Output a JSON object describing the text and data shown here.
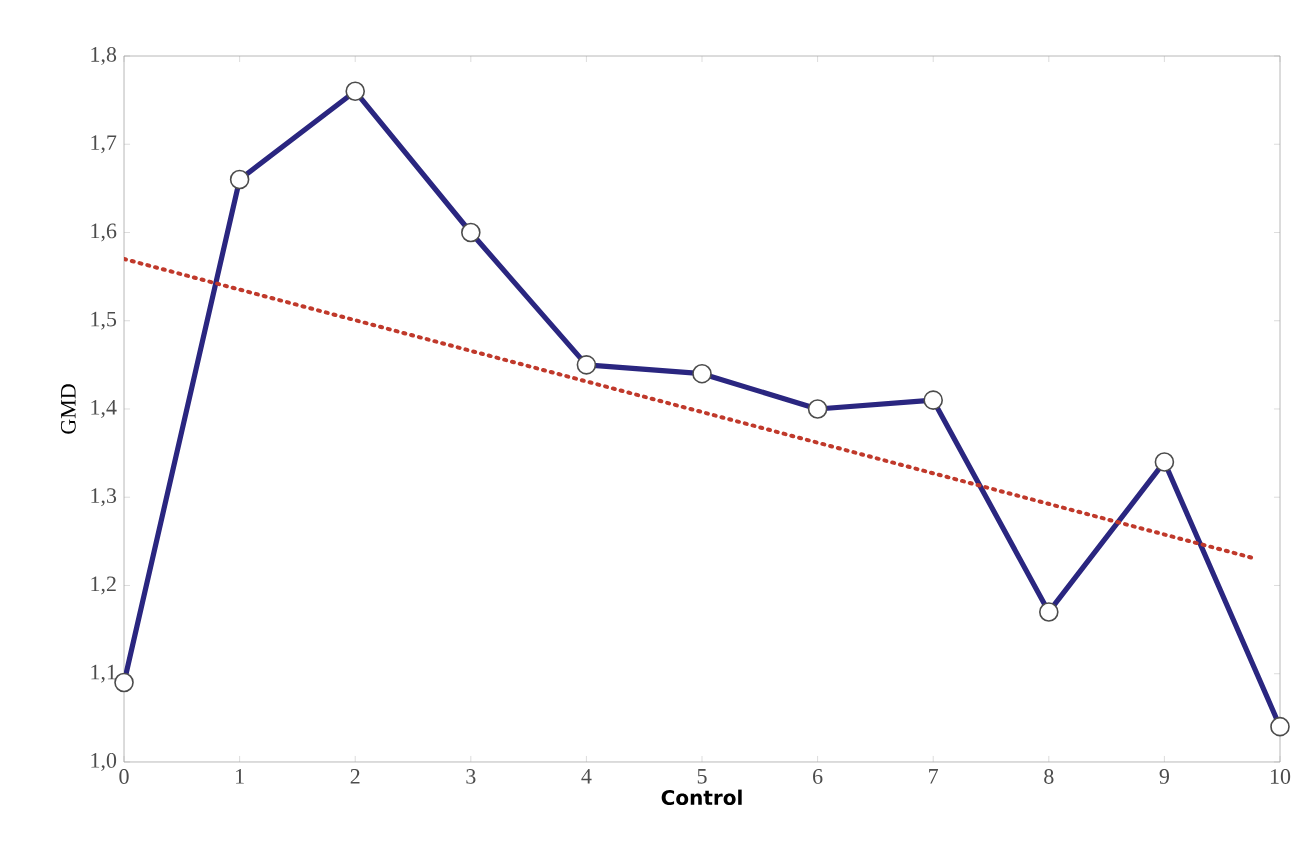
{
  "chart_data": {
    "type": "line",
    "xlabel": "Control",
    "ylabel": "GMD",
    "x": [
      0,
      1,
      2,
      3,
      4,
      5,
      6,
      7,
      8,
      9,
      10
    ],
    "xlim": [
      0,
      10
    ],
    "ylim": [
      1.0,
      1.8
    ],
    "xticks": [
      0,
      1,
      2,
      3,
      4,
      5,
      6,
      7,
      8,
      9,
      10
    ],
    "yticks": [
      {
        "value": 1.0,
        "label": "1,0"
      },
      {
        "value": 1.1,
        "label": "1,1"
      },
      {
        "value": 1.2,
        "label": "1,2"
      },
      {
        "value": 1.3,
        "label": "1,3"
      },
      {
        "value": 1.4,
        "label": "1,4"
      },
      {
        "value": 1.5,
        "label": "1,5"
      },
      {
        "value": 1.6,
        "label": "1,6"
      },
      {
        "value": 1.7,
        "label": "1,7"
      },
      {
        "value": 1.8,
        "label": "1,8"
      }
    ],
    "grid": false,
    "series": [
      {
        "color": "#2a2680",
        "marker": "circle",
        "line_style": "solid",
        "values": [
          1.09,
          1.66,
          1.76,
          1.6,
          1.45,
          1.44,
          1.4,
          1.41,
          1.17,
          1.34,
          1.04
        ]
      },
      {
        "type": "line",
        "color": "#c0392b",
        "marker": "none",
        "line_style": "dotted",
        "x": [
          0,
          9.8
        ],
        "values": [
          1.57,
          1.23
        ]
      }
    ]
  }
}
